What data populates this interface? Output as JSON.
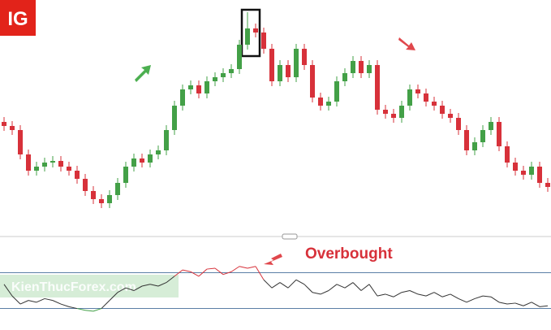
{
  "chart_data": {
    "type": "candlestick",
    "logo": "IG",
    "annotation": "Overbought",
    "watermark": "KienThucForex.com",
    "up_color": "#43a047",
    "down_color": "#d7313a",
    "ylim": [
      0,
      290
    ],
    "open": [
      140,
      135,
      130,
      100,
      80,
      85,
      90,
      92,
      85,
      80,
      70,
      55,
      45,
      40,
      50,
      65,
      85,
      95,
      90,
      100,
      105,
      130,
      160,
      180,
      185,
      175,
      190,
      195,
      200,
      205,
      235,
      255,
      250,
      230,
      190,
      210,
      195,
      230,
      210,
      170,
      160,
      165,
      190,
      200,
      215,
      200,
      210,
      155,
      150,
      145,
      160,
      180,
      175,
      165,
      160,
      150,
      145,
      130,
      105,
      115,
      130,
      140,
      110,
      90,
      80,
      75,
      85,
      65
    ],
    "high": [
      146,
      141,
      136,
      106,
      91,
      96,
      98,
      98,
      91,
      86,
      76,
      61,
      51,
      56,
      71,
      91,
      101,
      101,
      106,
      111,
      136,
      166,
      186,
      191,
      191,
      196,
      201,
      206,
      211,
      241,
      275,
      261,
      256,
      236,
      216,
      216,
      236,
      236,
      216,
      176,
      171,
      196,
      206,
      221,
      221,
      216,
      216,
      161,
      156,
      166,
      186,
      186,
      181,
      171,
      166,
      156,
      151,
      136,
      121,
      136,
      146,
      146,
      116,
      96,
      86,
      91,
      91,
      71
    ],
    "low": [
      129,
      124,
      94,
      74,
      74,
      79,
      84,
      79,
      74,
      64,
      49,
      39,
      34,
      34,
      44,
      59,
      79,
      84,
      84,
      94,
      99,
      124,
      154,
      174,
      169,
      169,
      184,
      189,
      194,
      199,
      229,
      244,
      224,
      184,
      184,
      189,
      189,
      204,
      164,
      154,
      154,
      159,
      184,
      194,
      194,
      194,
      149,
      144,
      139,
      139,
      154,
      169,
      159,
      154,
      144,
      139,
      124,
      99,
      99,
      109,
      124,
      104,
      84,
      74,
      69,
      69,
      59,
      54
    ],
    "close": [
      135,
      130,
      100,
      80,
      85,
      90,
      92,
      85,
      80,
      70,
      55,
      45,
      40,
      50,
      65,
      85,
      95,
      90,
      100,
      105,
      130,
      160,
      180,
      185,
      175,
      190,
      195,
      200,
      205,
      235,
      255,
      250,
      230,
      190,
      210,
      195,
      230,
      210,
      170,
      160,
      165,
      190,
      200,
      215,
      200,
      210,
      155,
      150,
      145,
      160,
      180,
      175,
      165,
      160,
      150,
      145,
      130,
      105,
      115,
      130,
      140,
      110,
      90,
      80,
      75,
      85,
      65,
      60
    ],
    "rsi": {
      "values": [
        57,
        44,
        35,
        39,
        37,
        41,
        39,
        35,
        32,
        30,
        28,
        27,
        30,
        39,
        48,
        53,
        50,
        55,
        57,
        55,
        59,
        66,
        73,
        71,
        66,
        74,
        75,
        68,
        71,
        77,
        75,
        77,
        62,
        53,
        59,
        53,
        62,
        57,
        48,
        46,
        50,
        57,
        53,
        59,
        50,
        57,
        44,
        46,
        43,
        48,
        50,
        46,
        44,
        48,
        43,
        46,
        41,
        37,
        41,
        44,
        43,
        37,
        35,
        36,
        33,
        37,
        32,
        33
      ],
      "ylim": [
        6,
        104
      ],
      "levels": [
        70,
        30
      ],
      "color": "#333333",
      "overbought_color": "#d7313a",
      "oversold_color": "#43a047",
      "level_color": "#5b7fa6"
    }
  }
}
